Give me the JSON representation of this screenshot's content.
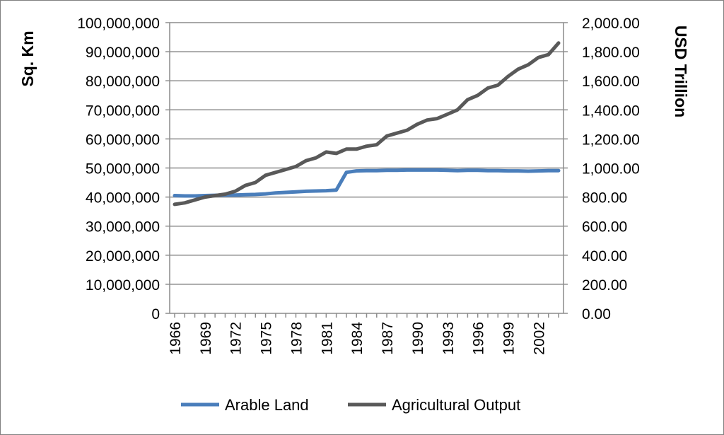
{
  "chart_data": {
    "type": "line",
    "title": "",
    "xlabel": "",
    "ylabel_left": "Sq. Km",
    "ylabel_right": "USD Trillion",
    "y_left_lim": [
      0,
      100000000
    ],
    "y_right_lim": [
      0,
      2000
    ],
    "y_left_ticks": [
      "0",
      "10,000,000",
      "20,000,000",
      "30,000,000",
      "40,000,000",
      "50,000,000",
      "60,000,000",
      "70,000,000",
      "80,000,000",
      "90,000,000",
      "100,000,000"
    ],
    "y_right_ticks": [
      "0.00",
      "200.00",
      "400.00",
      "600.00",
      "800.00",
      "1,000.00",
      "1,200.00",
      "1,400.00",
      "1,600.00",
      "1,800.00",
      "2,000.00"
    ],
    "x": [
      1966,
      1967,
      1968,
      1969,
      1970,
      1971,
      1972,
      1973,
      1974,
      1975,
      1976,
      1977,
      1978,
      1979,
      1980,
      1981,
      1982,
      1983,
      1984,
      1985,
      1986,
      1987,
      1988,
      1989,
      1990,
      1991,
      1992,
      1993,
      1994,
      1995,
      1996,
      1997,
      1998,
      1999,
      2000,
      2001,
      2002,
      2003,
      2004
    ],
    "x_tick_labels": [
      "1966",
      "1969",
      "1972",
      "1975",
      "1978",
      "1981",
      "1984",
      "1987",
      "1990",
      "1993",
      "1996",
      "1999",
      "2002"
    ],
    "grid": true,
    "legend": "bottom",
    "series": [
      {
        "name": "Arable Land",
        "axis": "left",
        "color": "#4a7ebb",
        "values": [
          40500000,
          40400000,
          40400000,
          40500000,
          40600000,
          40700000,
          40700000,
          40800000,
          40900000,
          41100000,
          41400000,
          41600000,
          41800000,
          42000000,
          42100000,
          42200000,
          42400000,
          48500000,
          49000000,
          49100000,
          49100000,
          49200000,
          49200000,
          49300000,
          49300000,
          49300000,
          49300000,
          49200000,
          49100000,
          49200000,
          49200000,
          49100000,
          49100000,
          49000000,
          49000000,
          48900000,
          49000000,
          49100000,
          49100000
        ]
      },
      {
        "name": "Agricultural Output",
        "axis": "right",
        "color": "#595959",
        "values": [
          750,
          760,
          780,
          800,
          810,
          820,
          840,
          880,
          900,
          950,
          970,
          990,
          1010,
          1050,
          1070,
          1110,
          1100,
          1130,
          1130,
          1150,
          1160,
          1220,
          1240,
          1260,
          1300,
          1330,
          1340,
          1370,
          1400,
          1470,
          1500,
          1550,
          1570,
          1630,
          1680,
          1710,
          1760,
          1780,
          1860
        ]
      }
    ]
  }
}
